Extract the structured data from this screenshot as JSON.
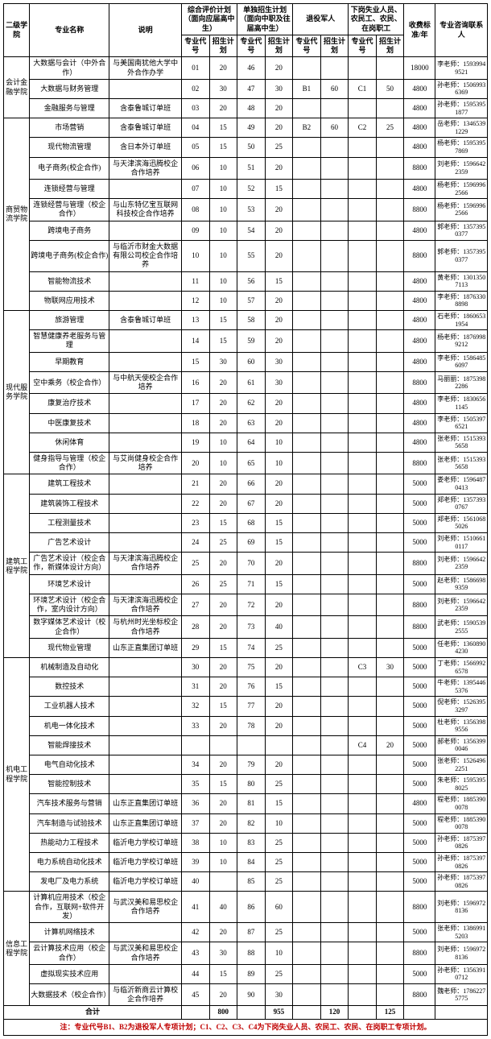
{
  "headers": {
    "dept": "二级学院",
    "major": "专业名称",
    "desc": "说明",
    "group1": "综合评价计划（面向应届高中生）",
    "group2": "单独招生计划（面向中职及往届高中生）",
    "group3": "退役军人",
    "group4": "下岗失业人员、农民工、农民、在岗职工",
    "code": "专业代号",
    "plan": "招生计划",
    "fee": "收费标准/年",
    "contact": "专业咨询联系人"
  },
  "totals": {
    "label": "合计",
    "g1_plan": "800",
    "g2_plan": "955",
    "g3_plan": "120",
    "g4_plan": "125"
  },
  "note": "注：专业代号B1、B2为退役军人专项计划；C1、C2、C3、C4为下岗失业人员、农民工、农民、在岗职工专项计划。",
  "depts": [
    {
      "name": "会计金融学院",
      "rows": [
        {
          "major": "大数据与会计（中外合作）",
          "desc": "与美国南犹他大学中外合作办学",
          "c1": "01",
          "p1": "20",
          "c2": "46",
          "p2": "20",
          "c3": "",
          "p3": "",
          "c4": "",
          "p4": "",
          "fee": "18000",
          "contact": "李老师：15939949521"
        },
        {
          "major": "大数据与财务管理",
          "desc": "",
          "c1": "02",
          "p1": "30",
          "c2": "47",
          "p2": "30",
          "c3": "B1",
          "p3": "60",
          "c4": "C1",
          "p4": "50",
          "fee": "4800",
          "contact": "孙老师：15069936369"
        },
        {
          "major": "金融服务与管理",
          "desc": "含泰鲁城订单班",
          "c1": "03",
          "p1": "20",
          "c2": "48",
          "p2": "20",
          "c3": "",
          "p3": "",
          "c4": "",
          "p4": "",
          "fee": "4800",
          "contact": "孙老师：15953951877"
        }
      ]
    },
    {
      "name": "商贸物流学院",
      "rows": [
        {
          "major": "市场营销",
          "desc": "含泰鲁城订单班",
          "c1": "04",
          "p1": "15",
          "c2": "49",
          "p2": "20",
          "c3": "B2",
          "p3": "60",
          "c4": "C2",
          "p4": "25",
          "fee": "4800",
          "contact": "岳老师：13465391229"
        },
        {
          "major": "现代物流管理",
          "desc": "含日本外订单班",
          "c1": "05",
          "p1": "15",
          "c2": "50",
          "p2": "25",
          "c3": "",
          "p3": "",
          "c4": "",
          "p4": "",
          "fee": "4800",
          "contact": "杨老师：15953957869"
        },
        {
          "major": "电子商务(校企合作)",
          "desc": "与天津滨海迅腾校企合作培养",
          "c1": "06",
          "p1": "10",
          "c2": "51",
          "p2": "20",
          "c3": "",
          "p3": "",
          "c4": "",
          "p4": "",
          "fee": "8800",
          "contact": "刘老师：15966422359"
        },
        {
          "major": "连锁经营与管理",
          "desc": "",
          "c1": "07",
          "p1": "10",
          "c2": "52",
          "p2": "15",
          "c3": "",
          "p3": "",
          "c4": "",
          "p4": "",
          "fee": "4800",
          "contact": "杨老师：15969962566"
        },
        {
          "major": "连锁经营与管理（校企合作）",
          "desc": "与山东特亿宝互联网科技校企合作培养",
          "c1": "08",
          "p1": "10",
          "c2": "53",
          "p2": "20",
          "c3": "",
          "p3": "",
          "c4": "",
          "p4": "",
          "fee": "8800",
          "contact": "杨老师：15969962566"
        },
        {
          "major": "跨境电子商务",
          "desc": "",
          "c1": "09",
          "p1": "10",
          "c2": "54",
          "p2": "20",
          "c3": "",
          "p3": "",
          "c4": "",
          "p4": "",
          "fee": "4800",
          "contact": "郭老师：13573950377"
        },
        {
          "major": "跨境电子商务(校企合作)",
          "desc": "与临沂市财金大数据有限公司校企合作培养",
          "c1": "10",
          "p1": "10",
          "c2": "55",
          "p2": "20",
          "c3": "",
          "p3": "",
          "c4": "",
          "p4": "",
          "fee": "8800",
          "contact": "郭老师：13573950377"
        },
        {
          "major": "智能物流技术",
          "desc": "",
          "c1": "11",
          "p1": "10",
          "c2": "56",
          "p2": "15",
          "c3": "",
          "p3": "",
          "c4": "",
          "p4": "",
          "fee": "4800",
          "contact": "黄老师：13013507113"
        },
        {
          "major": "物联网应用技术",
          "desc": "",
          "c1": "12",
          "p1": "10",
          "c2": "57",
          "p2": "20",
          "c3": "",
          "p3": "",
          "c4": "",
          "p4": "",
          "fee": "4800",
          "contact": "李老师：18763308898"
        }
      ]
    },
    {
      "name": "现代服务学院",
      "rows": [
        {
          "major": "旅游管理",
          "desc": "含泰鲁城订单班",
          "c1": "13",
          "p1": "15",
          "c2": "58",
          "p2": "20",
          "c3": "",
          "p3": "",
          "c4": "",
          "p4": "",
          "fee": "4800",
          "contact": "石老师：18606531954"
        },
        {
          "major": "智慧健康养老服务与管理",
          "desc": "",
          "c1": "14",
          "p1": "15",
          "c2": "59",
          "p2": "20",
          "c3": "",
          "p3": "",
          "c4": "",
          "p4": "",
          "fee": "4800",
          "contact": "杨老师：18769989212"
        },
        {
          "major": "早期教育",
          "desc": "",
          "c1": "15",
          "p1": "30",
          "c2": "60",
          "p2": "30",
          "c3": "",
          "p3": "",
          "c4": "",
          "p4": "",
          "fee": "4800",
          "contact": "李老师：15864856097"
        },
        {
          "major": "空中乘务（校企合作）",
          "desc": "与中航天使校企合作培养",
          "c1": "16",
          "p1": "20",
          "c2": "61",
          "p2": "30",
          "c3": "",
          "p3": "",
          "c4": "",
          "p4": "",
          "fee": "8800",
          "contact": "马丽丽：18753982286"
        },
        {
          "major": "康复治疗技术",
          "desc": "",
          "c1": "17",
          "p1": "20",
          "c2": "62",
          "p2": "20",
          "c3": "",
          "p3": "",
          "c4": "",
          "p4": "",
          "fee": "4800",
          "contact": "李老师：18306561145"
        },
        {
          "major": "中医康复技术",
          "desc": "",
          "c1": "18",
          "p1": "20",
          "c2": "63",
          "p2": "20",
          "c3": "",
          "p3": "",
          "c4": "",
          "p4": "",
          "fee": "4800",
          "contact": "李老师：15053976521"
        },
        {
          "major": "休闲体育",
          "desc": "",
          "c1": "19",
          "p1": "10",
          "c2": "64",
          "p2": "10",
          "c3": "",
          "p3": "",
          "c4": "",
          "p4": "",
          "fee": "4800",
          "contact": "张老师：15153935658"
        },
        {
          "major": "健身指导与管理（校企合作）",
          "desc": "与艾尚健身校企合作培养",
          "c1": "20",
          "p1": "10",
          "c2": "65",
          "p2": "10",
          "c3": "",
          "p3": "",
          "c4": "",
          "p4": "",
          "fee": "8800",
          "contact": "张老师：15153935658"
        }
      ]
    },
    {
      "name": "建筑工程学院",
      "rows": [
        {
          "major": "建筑工程技术",
          "desc": "",
          "c1": "21",
          "p1": "20",
          "c2": "66",
          "p2": "20",
          "c3": "",
          "p3": "",
          "c4": "",
          "p4": "",
          "fee": "5000",
          "contact": "娄老师：15964870413"
        },
        {
          "major": "建筑装饰工程技术",
          "desc": "",
          "c1": "22",
          "p1": "20",
          "c2": "67",
          "p2": "20",
          "c3": "",
          "p3": "",
          "c4": "",
          "p4": "",
          "fee": "5000",
          "contact": "郑老师：13573930767"
        },
        {
          "major": "工程测量技术",
          "desc": "",
          "c1": "23",
          "p1": "15",
          "c2": "68",
          "p2": "15",
          "c3": "",
          "p3": "",
          "c4": "",
          "p4": "",
          "fee": "5000",
          "contact": "郑老师：15610685026"
        },
        {
          "major": "广告艺术设计",
          "desc": "",
          "c1": "24",
          "p1": "25",
          "c2": "69",
          "p2": "15",
          "c3": "",
          "p3": "",
          "c4": "",
          "p4": "",
          "fee": "5000",
          "contact": "刘老师：15106610117"
        },
        {
          "major": "广告艺术设计（校企合作，新媒体设计方向）",
          "desc": "与天津滨海迅腾校企合作培养",
          "c1": "25",
          "p1": "20",
          "c2": "70",
          "p2": "20",
          "c3": "",
          "p3": "",
          "c4": "",
          "p4": "",
          "fee": "8800",
          "contact": "刘老师：15966422359"
        },
        {
          "major": "环境艺术设计",
          "desc": "",
          "c1": "26",
          "p1": "25",
          "c2": "71",
          "p2": "15",
          "c3": "",
          "p3": "",
          "c4": "",
          "p4": "",
          "fee": "5000",
          "contact": "赵老师：15866989359"
        },
        {
          "major": "环境艺术设计（校企合作，室内设计方向）",
          "desc": "与天津滨海迅腾校企合作培养",
          "c1": "27",
          "p1": "20",
          "c2": "72",
          "p2": "20",
          "c3": "",
          "p3": "",
          "c4": "",
          "p4": "",
          "fee": "8800",
          "contact": "刘老师：15966422359"
        },
        {
          "major": "数字媒体艺术设计（校企合作）",
          "desc": "与杭州时光坐标校企合作培养",
          "c1": "28",
          "p1": "20",
          "c2": "73",
          "p2": "40",
          "c3": "",
          "p3": "",
          "c4": "",
          "p4": "",
          "fee": "8800",
          "contact": "武老师：15905392555"
        },
        {
          "major": "现代物业管理",
          "desc": "山东正直集团订单班",
          "c1": "29",
          "p1": "15",
          "c2": "74",
          "p2": "25",
          "c3": "",
          "p3": "",
          "c4": "",
          "p4": "",
          "fee": "5000",
          "contact": "任老师：13608904230"
        }
      ]
    },
    {
      "name": "机电工程学院",
      "rows": [
        {
          "major": "机械制造及自动化",
          "desc": "",
          "c1": "30",
          "p1": "20",
          "c2": "75",
          "p2": "20",
          "c3": "",
          "p3": "",
          "c4": "C3",
          "p4": "30",
          "fee": "5000",
          "contact": "丁老师：15669926578"
        },
        {
          "major": "数控技术",
          "desc": "",
          "c1": "31",
          "p1": "20",
          "c2": "76",
          "p2": "15",
          "c3": "",
          "p3": "",
          "c4": "",
          "p4": "",
          "fee": "5000",
          "contact": "牛老师：13954465376"
        },
        {
          "major": "工业机器人技术",
          "desc": "",
          "c1": "32",
          "p1": "15",
          "c2": "77",
          "p2": "20",
          "c3": "",
          "p3": "",
          "c4": "",
          "p4": "",
          "fee": "5000",
          "contact": "倪老师：15263953297"
        },
        {
          "major": "机电一体化技术",
          "desc": "",
          "c1": "33",
          "p1": "20",
          "c2": "78",
          "p2": "20",
          "c3": "",
          "p3": "",
          "c4": "",
          "p4": "",
          "fee": "5000",
          "contact": "杜老师：13563989556"
        },
        {
          "major": "智能焊接技术",
          "desc": "",
          "c1": "",
          "p1": "",
          "c2": "",
          "p2": "",
          "c3": "",
          "p3": "",
          "c4": "C4",
          "p4": "20",
          "fee": "5000",
          "contact": "郝老师：13563990046"
        },
        {
          "major": "电气自动化技术",
          "desc": "",
          "c1": "34",
          "p1": "20",
          "c2": "79",
          "p2": "20",
          "c3": "",
          "p3": "",
          "c4": "",
          "p4": "",
          "fee": "5000",
          "contact": "张老师：15264962251"
        },
        {
          "major": "智能控制技术",
          "desc": "",
          "c1": "35",
          "p1": "15",
          "c2": "80",
          "p2": "25",
          "c3": "",
          "p3": "",
          "c4": "",
          "p4": "",
          "fee": "5000",
          "contact": "朱老师：15953958025"
        },
        {
          "major": "汽车技术服务与营销",
          "desc": "山东正直集团订单班",
          "c1": "36",
          "p1": "20",
          "c2": "81",
          "p2": "15",
          "c3": "",
          "p3": "",
          "c4": "",
          "p4": "",
          "fee": "4800",
          "contact": "程老师：18853900078"
        },
        {
          "major": "汽车制造与试验技术",
          "desc": "山东正直集团订单班",
          "c1": "37",
          "p1": "20",
          "c2": "82",
          "p2": "10",
          "c3": "",
          "p3": "",
          "c4": "",
          "p4": "",
          "fee": "5000",
          "contact": "程老师：18853900078"
        },
        {
          "major": "热能动力工程技术",
          "desc": "临沂电力学校订单班",
          "c1": "38",
          "p1": "10",
          "c2": "83",
          "p2": "25",
          "c3": "",
          "p3": "",
          "c4": "",
          "p4": "",
          "fee": "5000",
          "contact": "孙老师：18753970826"
        },
        {
          "major": "电力系统自动化技术",
          "desc": "临沂电力学校订单班",
          "c1": "39",
          "p1": "10",
          "c2": "84",
          "p2": "25",
          "c3": "",
          "p3": "",
          "c4": "",
          "p4": "",
          "fee": "5000",
          "contact": "孙老师：18753970826"
        },
        {
          "major": "发电厂及电力系统",
          "desc": "临沂电力学校订单班",
          "c1": "40",
          "p1": "",
          "c2": "85",
          "p2": "25",
          "c3": "",
          "p3": "",
          "c4": "",
          "p4": "",
          "fee": "5000",
          "contact": "孙老师：18753970826"
        }
      ]
    },
    {
      "name": "信息工程学院",
      "rows": [
        {
          "major": "计算机应用技术（校企合作，互联网+软件开发）",
          "desc": "与武汉美和易思校企合作培养",
          "c1": "41",
          "p1": "40",
          "c2": "86",
          "p2": "60",
          "c3": "",
          "p3": "",
          "c4": "",
          "p4": "",
          "fee": "8800",
          "contact": "刘老师：15969728136"
        },
        {
          "major": "计算机网络技术",
          "desc": "",
          "c1": "42",
          "p1": "20",
          "c2": "87",
          "p2": "25",
          "c3": "",
          "p3": "",
          "c4": "",
          "p4": "",
          "fee": "5000",
          "contact": "张老师：13869915203"
        },
        {
          "major": "云计算技术应用（校企合作）",
          "desc": "与武汉美和易思校企合作培养",
          "c1": "43",
          "p1": "30",
          "c2": "88",
          "p2": "10",
          "c3": "",
          "p3": "",
          "c4": "",
          "p4": "",
          "fee": "8800",
          "contact": "刘老师：15969728136"
        },
        {
          "major": "虚拟现实技术应用",
          "desc": "",
          "c1": "44",
          "p1": "15",
          "c2": "89",
          "p2": "25",
          "c3": "",
          "p3": "",
          "c4": "",
          "p4": "",
          "fee": "5000",
          "contact": "孙老师：13563910712"
        },
        {
          "major": "大数据技术（校企合作）",
          "desc": "与临沂新商云计算校企合作培养",
          "c1": "45",
          "p1": "20",
          "c2": "90",
          "p2": "30",
          "c3": "",
          "p3": "",
          "c4": "",
          "p4": "",
          "fee": "8800",
          "contact": "魏老师：17862275775"
        }
      ]
    }
  ]
}
